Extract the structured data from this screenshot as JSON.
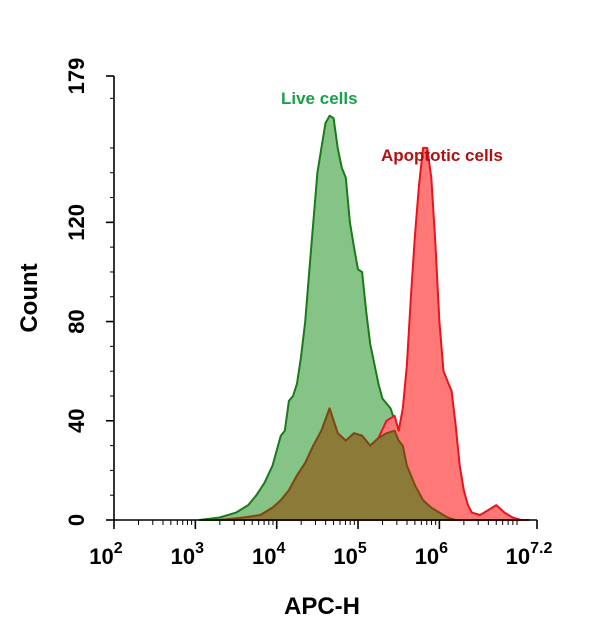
{
  "chart_data": {
    "type": "area",
    "xlabel": "APC-H",
    "ylabel": "Count",
    "xscale": "log",
    "xlim": [
      2,
      7.2
    ],
    "ylim": [
      0,
      179
    ],
    "x_ticks": [
      {
        "base": "10",
        "exp": "2",
        "value": 2
      },
      {
        "base": "10",
        "exp": "3",
        "value": 3
      },
      {
        "base": "10",
        "exp": "4",
        "value": 4
      },
      {
        "base": "10",
        "exp": "5",
        "value": 5
      },
      {
        "base": "10",
        "exp": "6",
        "value": 6
      },
      {
        "base": "10",
        "exp": "7.2",
        "value": 7.2
      }
    ],
    "y_ticks": [
      {
        "label": "0",
        "value": 0
      },
      {
        "label": "40",
        "value": 40
      },
      {
        "label": "80",
        "value": 80
      },
      {
        "label": "120",
        "value": 120
      },
      {
        "label": "179",
        "value": 179
      }
    ],
    "grid": false,
    "series": [
      {
        "name": "Live cells",
        "fill": "#86c386",
        "stroke": "#1a7a1a",
        "label_color": "#1aa04a",
        "x": [
          3.05,
          3.3,
          3.5,
          3.65,
          3.75,
          3.85,
          3.95,
          4.0,
          4.05,
          4.1,
          4.15,
          4.2,
          4.25,
          4.3,
          4.35,
          4.4,
          4.45,
          4.5,
          4.55,
          4.6,
          4.65,
          4.7,
          4.75,
          4.8,
          4.85,
          4.9,
          4.95,
          5.0,
          5.05,
          5.1,
          5.15,
          5.2,
          5.25,
          5.3,
          5.4,
          5.5,
          5.6,
          5.7,
          5.8,
          5.9,
          6.0,
          6.1,
          6.2
        ],
        "y": [
          0,
          1,
          3,
          6,
          10,
          15,
          22,
          28,
          34,
          36,
          48,
          50,
          55,
          66,
          80,
          100,
          120,
          140,
          150,
          160,
          163,
          162,
          150,
          142,
          138,
          120,
          110,
          101,
          100,
          84,
          71,
          63,
          55,
          49,
          45,
          35,
          25,
          16,
          9,
          5,
          3,
          1,
          0
        ]
      },
      {
        "name": "Apoptotic cells",
        "fill": "#ff7878",
        "stroke": "#e8141e",
        "label_color": "#b01010",
        "x": [
          3.3,
          3.6,
          3.8,
          3.95,
          4.05,
          4.15,
          4.25,
          4.35,
          4.45,
          4.55,
          4.65,
          4.75,
          4.85,
          4.95,
          5.05,
          5.15,
          5.25,
          5.35,
          5.45,
          5.5,
          5.55,
          5.6,
          5.65,
          5.7,
          5.75,
          5.8,
          5.85,
          5.9,
          5.95,
          6.0,
          6.05,
          6.1,
          6.15,
          6.2,
          6.25,
          6.3,
          6.35,
          6.4,
          6.5,
          6.6,
          6.7,
          6.8,
          6.9,
          7.0,
          7.1
        ],
        "y": [
          0,
          1,
          2,
          5,
          8,
          12,
          18,
          23,
          30,
          36,
          45,
          35,
          32,
          35,
          34,
          30,
          33,
          40,
          42,
          36,
          45,
          62,
          90,
          115,
          135,
          150,
          150,
          138,
          112,
          80,
          60,
          56,
          52,
          38,
          22,
          12,
          6,
          3,
          2,
          4,
          6,
          3,
          1,
          0,
          0
        ]
      },
      {
        "name": "",
        "fill": "#8c7a38",
        "stroke": "#7a4a14",
        "x": [
          3.3,
          3.6,
          3.8,
          3.95,
          4.05,
          4.15,
          4.25,
          4.35,
          4.45,
          4.55,
          4.65,
          4.75,
          4.85,
          4.95,
          5.05,
          5.15,
          5.25,
          5.35,
          5.45,
          5.5,
          5.55,
          5.6,
          5.7,
          5.8,
          5.9,
          6.0,
          6.1,
          6.2
        ],
        "y": [
          0,
          1,
          2,
          5,
          8,
          12,
          18,
          23,
          30,
          36,
          45,
          35,
          32,
          35,
          34,
          30,
          33,
          35,
          36,
          32,
          30,
          22,
          14,
          8,
          5,
          3,
          1,
          0
        ]
      }
    ]
  }
}
